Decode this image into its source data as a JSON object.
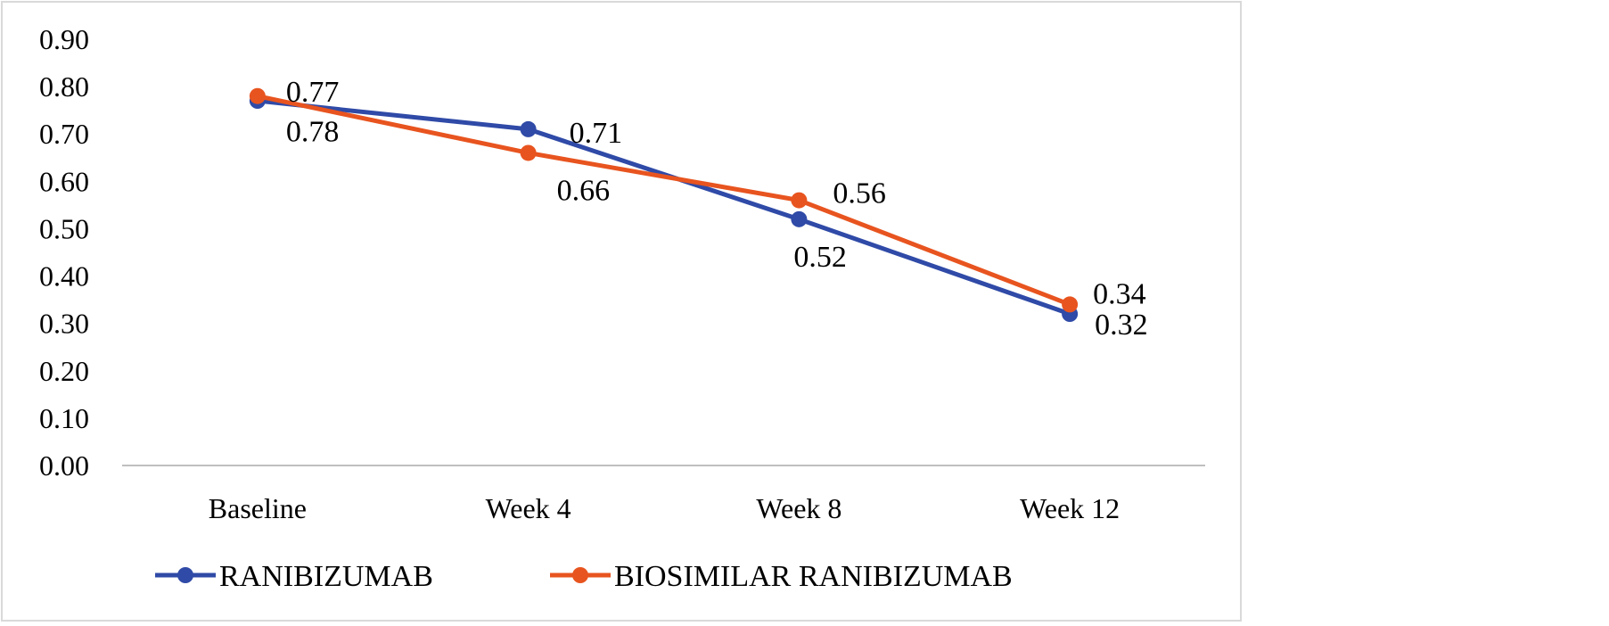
{
  "chart_data": {
    "type": "line",
    "title": "",
    "xlabel": "",
    "ylabel": "",
    "categories": [
      "Baseline",
      "Week 4",
      "Week 8",
      "Week 12"
    ],
    "ylim": [
      0,
      0.9
    ],
    "yticks": [
      "0.00",
      "0.10",
      "0.20",
      "0.30",
      "0.40",
      "0.50",
      "0.60",
      "0.70",
      "0.80",
      "0.90"
    ],
    "grid": false,
    "legend": "bottom",
    "series": [
      {
        "name": "RANIBIZUMAB",
        "color": "#2f4aa7",
        "values": [
          0.77,
          0.71,
          0.52,
          0.32
        ],
        "labels": [
          "0.77",
          "0.71",
          "0.52",
          "0.32"
        ]
      },
      {
        "name": "BIOSIMILAR RANIBIZUMAB",
        "color": "#e8541f",
        "values": [
          0.78,
          0.66,
          0.56,
          0.34
        ],
        "labels": [
          "0.78",
          "0.66",
          "0.56",
          "0.34"
        ]
      }
    ]
  }
}
